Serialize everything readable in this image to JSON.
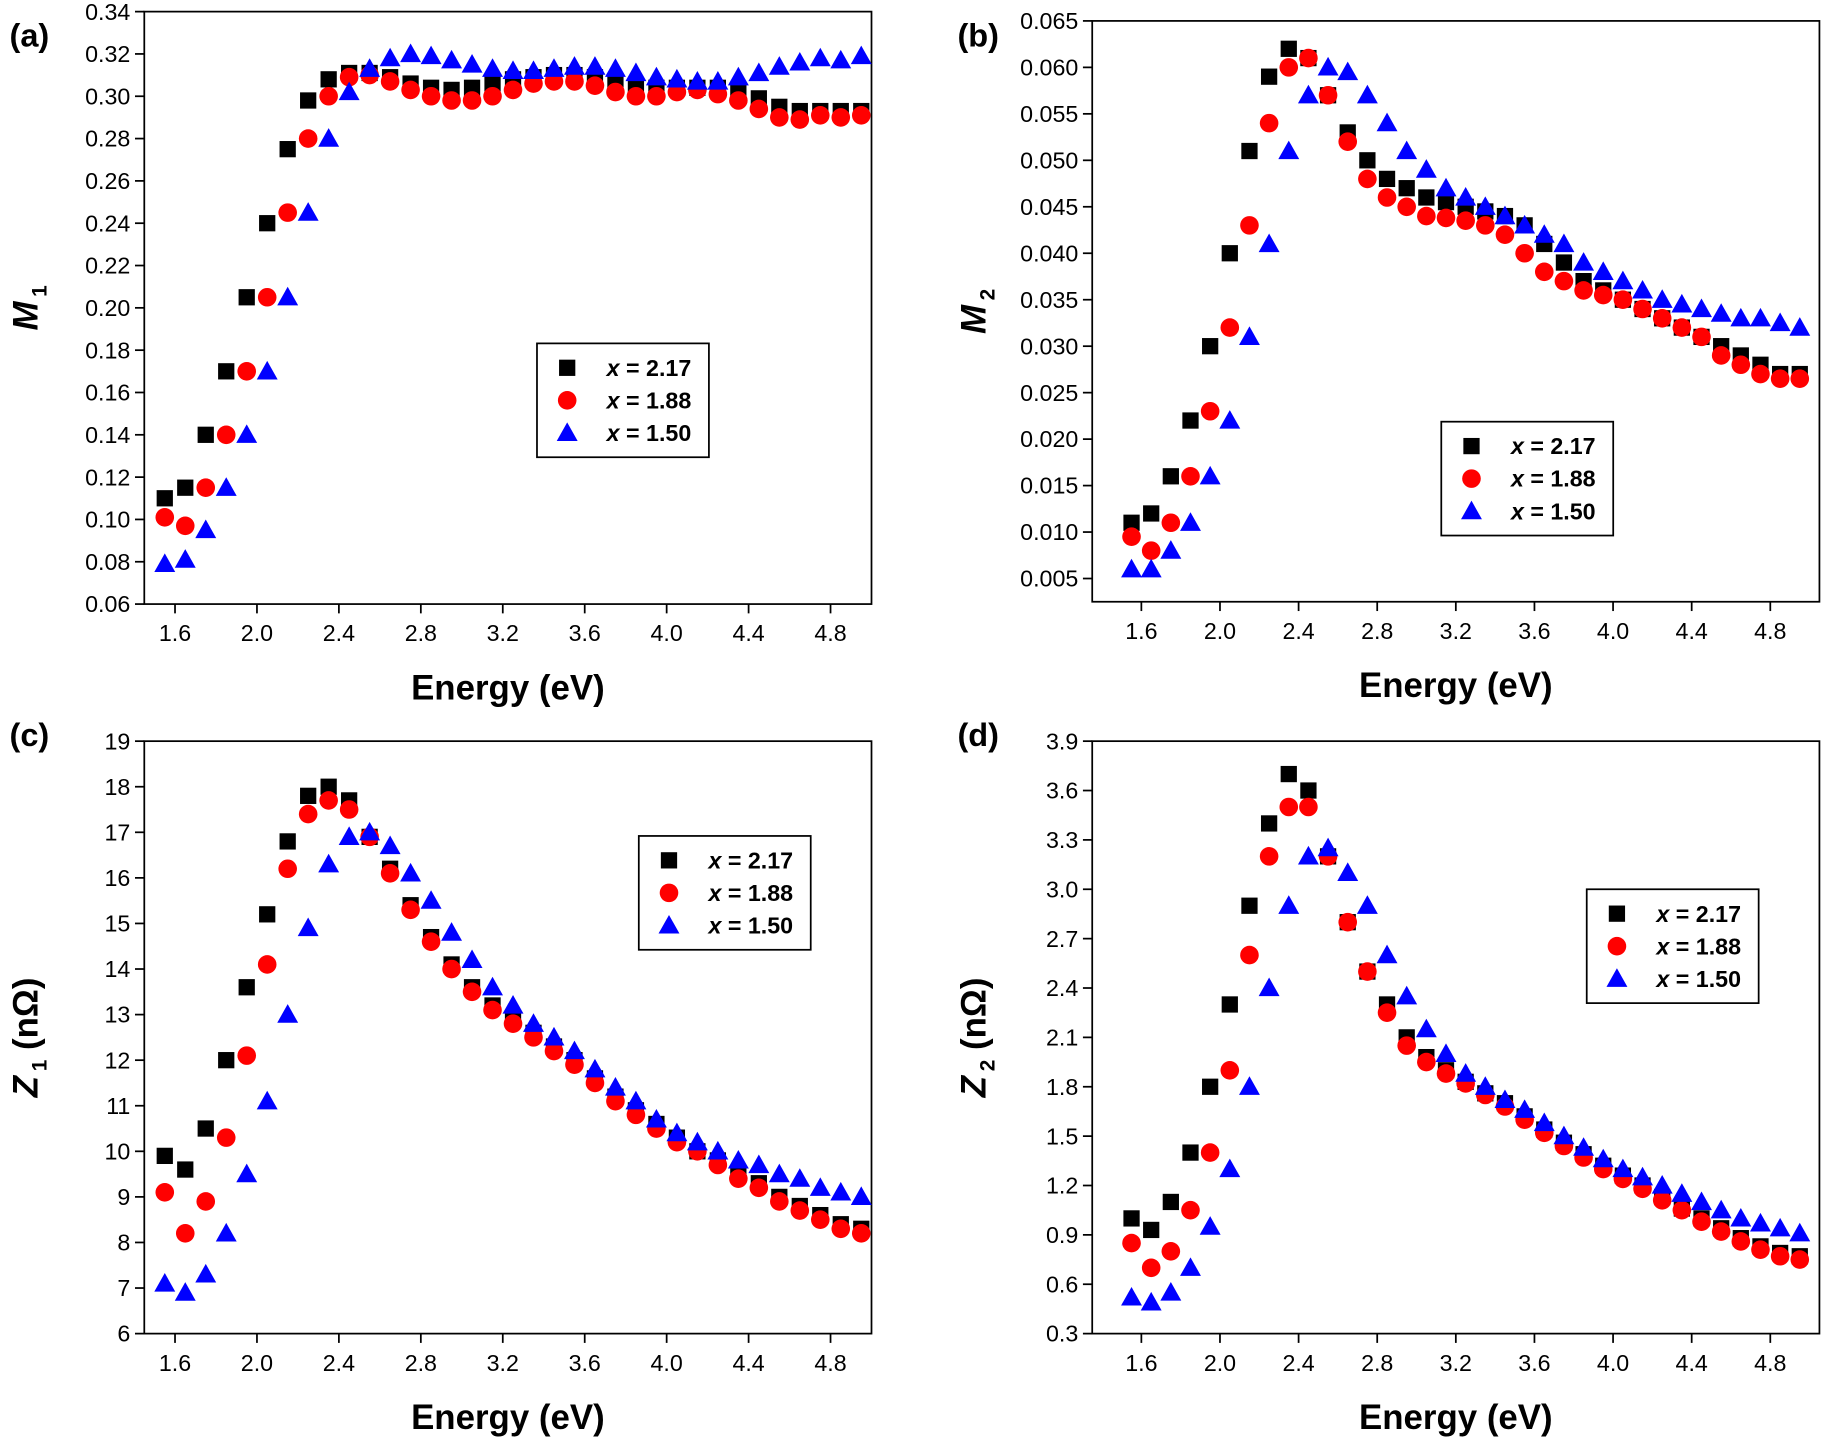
{
  "chart_data": [
    {
      "type": "scatter",
      "panel_label": "(a)",
      "xlabel": "Energy (eV)",
      "ylabel": "M",
      "ylabel_sub": "1",
      "legend_position": "center",
      "xlim": [
        1.45,
        5.0
      ],
      "xticks": [
        1.6,
        {
          "value": 2,
          "label": "2.0"
        },
        2.4,
        2.8,
        3.2,
        3.6,
        {
          "value": 4,
          "label": "4.0"
        },
        4.4,
        4.8
      ],
      "ylim": [
        0.06,
        0.34
      ],
      "yticks": [
        0.06,
        0.08,
        {
          "value": 0.1,
          "label": "0.10"
        },
        0.12,
        0.14,
        0.16,
        0.18,
        {
          "value": 0.2,
          "label": "0.20"
        },
        0.22,
        0.24,
        0.26,
        0.28,
        {
          "value": 0.3,
          "label": "0.30"
        },
        0.32,
        0.34
      ],
      "x": [
        1.55,
        1.65,
        1.75,
        1.85,
        1.95,
        2.05,
        2.15,
        2.25,
        2.35,
        2.45,
        2.55,
        2.65,
        2.75,
        2.85,
        2.95,
        3.05,
        3.15,
        3.25,
        3.35,
        3.45,
        3.55,
        3.65,
        3.75,
        3.85,
        3.95,
        4.05,
        4.15,
        4.25,
        4.35,
        4.45,
        4.55,
        4.65,
        4.75,
        4.85,
        4.95
      ],
      "series": [
        {
          "name": "x = 2.17",
          "color": "#000000",
          "marker": "square",
          "values": [
            0.11,
            0.115,
            0.14,
            0.17,
            0.205,
            0.24,
            0.275,
            0.298,
            0.308,
            0.311,
            0.311,
            0.309,
            0.306,
            0.304,
            0.303,
            0.304,
            0.306,
            0.308,
            0.309,
            0.31,
            0.31,
            0.309,
            0.307,
            0.305,
            0.304,
            0.304,
            0.304,
            0.304,
            0.302,
            0.299,
            0.295,
            0.293,
            0.293,
            0.293,
            0.293
          ]
        },
        {
          "name": "x = 1.88",
          "color": "#ff0000",
          "marker": "circle",
          "values": [
            0.101,
            0.097,
            0.115,
            0.14,
            0.17,
            0.205,
            0.245,
            0.28,
            0.3,
            0.309,
            0.31,
            0.307,
            0.303,
            0.3,
            0.298,
            0.298,
            0.3,
            0.303,
            0.306,
            0.307,
            0.307,
            0.305,
            0.302,
            0.3,
            0.3,
            0.302,
            0.303,
            0.301,
            0.298,
            0.294,
            0.29,
            0.289,
            0.291,
            0.29,
            0.291
          ]
        },
        {
          "name": "x = 1.50",
          "color": "#0000ff",
          "marker": "triangle",
          "values": [
            0.079,
            0.081,
            0.095,
            0.115,
            0.14,
            0.17,
            0.205,
            0.245,
            0.28,
            0.302,
            0.313,
            0.318,
            0.32,
            0.319,
            0.317,
            0.315,
            0.313,
            0.312,
            0.312,
            0.313,
            0.314,
            0.314,
            0.313,
            0.311,
            0.309,
            0.308,
            0.307,
            0.307,
            0.309,
            0.311,
            0.314,
            0.316,
            0.318,
            0.317,
            0.319
          ]
        }
      ]
    },
    {
      "type": "scatter",
      "panel_label": "(b)",
      "xlabel": "Energy (eV)",
      "ylabel": "M",
      "ylabel_sub": "2",
      "legend_position": "lower center",
      "xlim": [
        1.35,
        5.05
      ],
      "xticks": [
        1.6,
        {
          "value": 2,
          "label": "2.0"
        },
        2.4,
        2.8,
        3.2,
        3.6,
        {
          "value": 4,
          "label": "4.0"
        },
        4.4,
        4.8
      ],
      "ylim": [
        0.0025,
        0.065
      ],
      "yticks": [
        0.005,
        {
          "value": 0.01,
          "label": "0.010"
        },
        0.015,
        {
          "value": 0.02,
          "label": "0.020"
        },
        0.025,
        {
          "value": 0.03,
          "label": "0.030"
        },
        0.035,
        {
          "value": 0.04,
          "label": "0.040"
        },
        0.045,
        {
          "value": 0.05,
          "label": "0.050"
        },
        0.055,
        {
          "value": 0.06,
          "label": "0.060"
        },
        0.065
      ],
      "x": [
        1.55,
        1.65,
        1.75,
        1.85,
        1.95,
        2.05,
        2.15,
        2.25,
        2.35,
        2.45,
        2.55,
        2.65,
        2.75,
        2.85,
        2.95,
        3.05,
        3.15,
        3.25,
        3.35,
        3.45,
        3.55,
        3.65,
        3.75,
        3.85,
        3.95,
        4.05,
        4.15,
        4.25,
        4.35,
        4.45,
        4.55,
        4.65,
        4.75,
        4.85,
        4.95
      ],
      "series": [
        {
          "name": "x = 2.17",
          "color": "#000000",
          "marker": "square",
          "values": [
            0.011,
            0.012,
            0.016,
            0.022,
            0.03,
            0.04,
            0.051,
            0.059,
            0.062,
            0.061,
            0.057,
            0.053,
            0.05,
            0.048,
            0.047,
            0.046,
            0.0455,
            0.045,
            0.0445,
            0.044,
            0.043,
            0.041,
            0.039,
            0.037,
            0.036,
            0.035,
            0.034,
            0.033,
            0.032,
            0.031,
            0.03,
            0.029,
            0.028,
            0.027,
            0.027
          ]
        },
        {
          "name": "x = 1.88",
          "color": "#ff0000",
          "marker": "circle",
          "values": [
            0.0095,
            0.008,
            0.011,
            0.016,
            0.023,
            0.032,
            0.043,
            0.054,
            0.06,
            0.061,
            0.057,
            0.052,
            0.048,
            0.046,
            0.045,
            0.044,
            0.0438,
            0.0435,
            0.043,
            0.042,
            0.04,
            0.038,
            0.037,
            0.036,
            0.0355,
            0.035,
            0.034,
            0.033,
            0.032,
            0.031,
            0.029,
            0.028,
            0.027,
            0.0265,
            0.0265
          ]
        },
        {
          "name": "x = 1.50",
          "color": "#0000ff",
          "marker": "triangle",
          "values": [
            0.006,
            0.006,
            0.008,
            0.011,
            0.016,
            0.022,
            0.031,
            0.041,
            0.051,
            0.057,
            0.06,
            0.0595,
            0.057,
            0.054,
            0.051,
            0.049,
            0.047,
            0.046,
            0.045,
            0.044,
            0.043,
            0.042,
            0.041,
            0.039,
            0.038,
            0.037,
            0.036,
            0.035,
            0.0345,
            0.034,
            0.0335,
            0.033,
            0.033,
            0.0325,
            0.032
          ]
        }
      ]
    },
    {
      "type": "scatter",
      "panel_label": "(c)",
      "xlabel": "Energy (eV)",
      "ylabel": "Z",
      "ylabel_sub": "1",
      "ylabel_unit": " (nΩ)",
      "legend_position": "upper right",
      "xlim": [
        1.45,
        5.0
      ],
      "xticks": [
        1.6,
        {
          "value": 2,
          "label": "2.0"
        },
        2.4,
        2.8,
        3.2,
        3.6,
        {
          "value": 4,
          "label": "4.0"
        },
        4.4,
        4.8
      ],
      "ylim": [
        6,
        19
      ],
      "yticks": [
        6,
        7,
        8,
        9,
        10,
        11,
        12,
        13,
        14,
        15,
        16,
        17,
        18,
        19
      ],
      "x": [
        1.55,
        1.65,
        1.75,
        1.85,
        1.95,
        2.05,
        2.15,
        2.25,
        2.35,
        2.45,
        2.55,
        2.65,
        2.75,
        2.85,
        2.95,
        3.05,
        3.15,
        3.25,
        3.35,
        3.45,
        3.55,
        3.65,
        3.75,
        3.85,
        3.95,
        4.05,
        4.15,
        4.25,
        4.35,
        4.45,
        4.55,
        4.65,
        4.75,
        4.85,
        4.95
      ],
      "series": [
        {
          "name": "x = 2.17",
          "color": "#000000",
          "marker": "square",
          "values": [
            9.9,
            9.6,
            10.5,
            12.0,
            13.6,
            15.2,
            16.8,
            17.8,
            18.0,
            17.7,
            16.9,
            16.2,
            15.4,
            14.7,
            14.1,
            13.6,
            13.2,
            12.9,
            12.6,
            12.3,
            12.0,
            11.6,
            11.2,
            10.9,
            10.6,
            10.3,
            10.0,
            9.8,
            9.5,
            9.3,
            9.0,
            8.8,
            8.6,
            8.4,
            8.3
          ]
        },
        {
          "name": "x = 1.88",
          "color": "#ff0000",
          "marker": "circle",
          "values": [
            9.1,
            8.2,
            8.9,
            10.3,
            12.1,
            14.1,
            16.2,
            17.4,
            17.7,
            17.5,
            16.9,
            16.1,
            15.3,
            14.6,
            14.0,
            13.5,
            13.1,
            12.8,
            12.5,
            12.2,
            11.9,
            11.5,
            11.1,
            10.8,
            10.5,
            10.2,
            10.0,
            9.7,
            9.4,
            9.2,
            8.9,
            8.7,
            8.5,
            8.3,
            8.2
          ]
        },
        {
          "name": "x = 1.50",
          "color": "#0000ff",
          "marker": "triangle",
          "values": [
            7.1,
            6.9,
            7.3,
            8.2,
            9.5,
            11.1,
            13.0,
            14.9,
            16.3,
            16.9,
            17.0,
            16.7,
            16.1,
            15.5,
            14.8,
            14.2,
            13.6,
            13.2,
            12.8,
            12.5,
            12.2,
            11.8,
            11.4,
            11.1,
            10.7,
            10.4,
            10.2,
            10.0,
            9.8,
            9.7,
            9.5,
            9.4,
            9.2,
            9.1,
            9.0
          ]
        }
      ]
    },
    {
      "type": "scatter",
      "panel_label": "(d)",
      "xlabel": "Energy (eV)",
      "ylabel": "Z",
      "ylabel_sub": "2",
      "ylabel_unit": " (nΩ)",
      "legend_position": "center right",
      "xlim": [
        1.35,
        5.05
      ],
      "xticks": [
        1.6,
        {
          "value": 2,
          "label": "2.0"
        },
        2.4,
        2.8,
        3.2,
        3.6,
        {
          "value": 4,
          "label": "4.0"
        },
        4.4,
        4.8
      ],
      "ylim": [
        0.3,
        3.9
      ],
      "yticks": [
        0.3,
        0.6,
        0.9,
        1.2,
        1.5,
        1.8,
        2.1,
        2.4,
        2.7,
        {
          "value": 3,
          "label": "3.0"
        },
        3.3,
        3.6,
        3.9
      ],
      "x": [
        1.55,
        1.65,
        1.75,
        1.85,
        1.95,
        2.05,
        2.15,
        2.25,
        2.35,
        2.45,
        2.55,
        2.65,
        2.75,
        2.85,
        2.95,
        3.05,
        3.15,
        3.25,
        3.35,
        3.45,
        3.55,
        3.65,
        3.75,
        3.85,
        3.95,
        4.05,
        4.15,
        4.25,
        4.35,
        4.45,
        4.55,
        4.65,
        4.75,
        4.85,
        4.95
      ],
      "series": [
        {
          "name": "x = 2.17",
          "color": "#000000",
          "marker": "square",
          "values": [
            1.0,
            0.93,
            1.1,
            1.4,
            1.8,
            2.3,
            2.9,
            3.4,
            3.7,
            3.6,
            3.2,
            2.8,
            2.5,
            2.3,
            2.1,
            1.98,
            1.9,
            1.83,
            1.76,
            1.7,
            1.62,
            1.54,
            1.46,
            1.39,
            1.32,
            1.26,
            1.2,
            1.13,
            1.06,
            1.0,
            0.94,
            0.88,
            0.83,
            0.79,
            0.77
          ]
        },
        {
          "name": "x = 1.88",
          "color": "#ff0000",
          "marker": "circle",
          "values": [
            0.85,
            0.7,
            0.8,
            1.05,
            1.4,
            1.9,
            2.6,
            3.2,
            3.5,
            3.5,
            3.2,
            2.8,
            2.5,
            2.25,
            2.05,
            1.95,
            1.88,
            1.82,
            1.75,
            1.68,
            1.6,
            1.52,
            1.44,
            1.37,
            1.3,
            1.24,
            1.18,
            1.11,
            1.05,
            0.98,
            0.92,
            0.86,
            0.81,
            0.77,
            0.75
          ]
        },
        {
          "name": "x = 1.50",
          "color": "#0000ff",
          "marker": "triangle",
          "values": [
            0.52,
            0.49,
            0.55,
            0.7,
            0.95,
            1.3,
            1.8,
            2.4,
            2.9,
            3.2,
            3.25,
            3.1,
            2.9,
            2.6,
            2.35,
            2.15,
            2.0,
            1.88,
            1.8,
            1.72,
            1.66,
            1.58,
            1.5,
            1.43,
            1.36,
            1.3,
            1.25,
            1.2,
            1.15,
            1.1,
            1.05,
            1.0,
            0.97,
            0.94,
            0.91
          ]
        }
      ]
    }
  ]
}
